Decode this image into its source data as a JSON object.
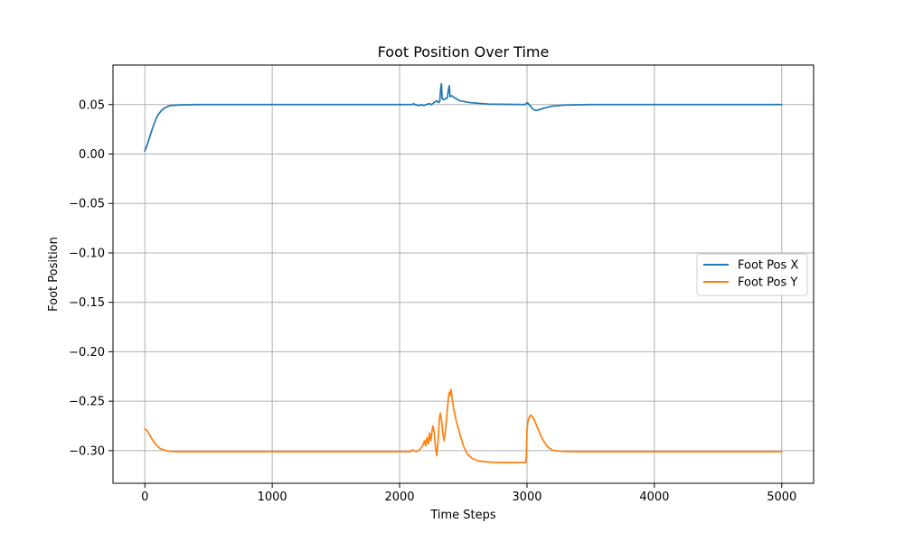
{
  "chart_data": {
    "type": "line",
    "title": "Foot Position Over Time",
    "xlabel": "Time Steps",
    "ylabel": "Foot Position",
    "xlim": [
      -250,
      5250
    ],
    "ylim": [
      -0.333,
      0.09
    ],
    "xticks": [
      0,
      1000,
      2000,
      3000,
      4000,
      5000
    ],
    "yticks": [
      0.05,
      0.0,
      -0.05,
      -0.1,
      -0.15,
      -0.2,
      -0.25,
      -0.3
    ],
    "xtick_labels": [
      "0",
      "1000",
      "2000",
      "3000",
      "4000",
      "5000"
    ],
    "ytick_labels": [
      "0.05",
      "0.00",
      "−0.05",
      "−0.10",
      "−0.15",
      "−0.20",
      "−0.25",
      "−0.30"
    ],
    "grid": true,
    "legend_position": "center-right",
    "series": [
      {
        "name": "Foot Pos X",
        "color": "#1f77b4",
        "points": [
          [
            0,
            0.003
          ],
          [
            20,
            0.01
          ],
          [
            40,
            0.018
          ],
          [
            60,
            0.026
          ],
          [
            80,
            0.033
          ],
          [
            100,
            0.039
          ],
          [
            130,
            0.044
          ],
          [
            160,
            0.047
          ],
          [
            200,
            0.049
          ],
          [
            260,
            0.0496
          ],
          [
            400,
            0.05
          ],
          [
            1000,
            0.05
          ],
          [
            2000,
            0.05
          ],
          [
            2100,
            0.05
          ],
          [
            2110,
            0.051
          ],
          [
            2120,
            0.05
          ],
          [
            2150,
            0.049
          ],
          [
            2170,
            0.05
          ],
          [
            2190,
            0.049
          ],
          [
            2210,
            0.05
          ],
          [
            2230,
            0.051
          ],
          [
            2250,
            0.05
          ],
          [
            2270,
            0.052
          ],
          [
            2290,
            0.054
          ],
          [
            2305,
            0.052
          ],
          [
            2315,
            0.053
          ],
          [
            2322,
            0.066
          ],
          [
            2328,
            0.071
          ],
          [
            2334,
            0.056
          ],
          [
            2345,
            0.055
          ],
          [
            2360,
            0.056
          ],
          [
            2375,
            0.057
          ],
          [
            2383,
            0.065
          ],
          [
            2390,
            0.069
          ],
          [
            2396,
            0.058
          ],
          [
            2410,
            0.059
          ],
          [
            2430,
            0.057
          ],
          [
            2470,
            0.054
          ],
          [
            2550,
            0.052
          ],
          [
            2700,
            0.0505
          ],
          [
            2980,
            0.05
          ],
          [
            2990,
            0.0505
          ],
          [
            3000,
            0.052
          ],
          [
            3010,
            0.051
          ],
          [
            3030,
            0.048
          ],
          [
            3050,
            0.045
          ],
          [
            3070,
            0.044
          ],
          [
            3100,
            0.045
          ],
          [
            3150,
            0.047
          ],
          [
            3200,
            0.0485
          ],
          [
            3300,
            0.0495
          ],
          [
            3500,
            0.05
          ],
          [
            5000,
            0.05
          ]
        ]
      },
      {
        "name": "Foot Pos Y",
        "color": "#ff7f0e",
        "points": [
          [
            0,
            -0.278
          ],
          [
            20,
            -0.28
          ],
          [
            50,
            -0.287
          ],
          [
            80,
            -0.293
          ],
          [
            120,
            -0.298
          ],
          [
            180,
            -0.3005
          ],
          [
            250,
            -0.301
          ],
          [
            400,
            -0.301
          ],
          [
            1000,
            -0.301
          ],
          [
            2000,
            -0.301
          ],
          [
            2090,
            -0.301
          ],
          [
            2100,
            -0.299
          ],
          [
            2110,
            -0.3
          ],
          [
            2130,
            -0.301
          ],
          [
            2150,
            -0.3
          ],
          [
            2170,
            -0.297
          ],
          [
            2185,
            -0.294
          ],
          [
            2195,
            -0.29
          ],
          [
            2205,
            -0.295
          ],
          [
            2215,
            -0.287
          ],
          [
            2225,
            -0.293
          ],
          [
            2235,
            -0.282
          ],
          [
            2245,
            -0.29
          ],
          [
            2255,
            -0.279
          ],
          [
            2262,
            -0.275
          ],
          [
            2270,
            -0.28
          ],
          [
            2280,
            -0.295
          ],
          [
            2292,
            -0.305
          ],
          [
            2302,
            -0.29
          ],
          [
            2312,
            -0.268
          ],
          [
            2320,
            -0.262
          ],
          [
            2330,
            -0.27
          ],
          [
            2340,
            -0.283
          ],
          [
            2350,
            -0.29
          ],
          [
            2360,
            -0.28
          ],
          [
            2372,
            -0.262
          ],
          [
            2382,
            -0.248
          ],
          [
            2390,
            -0.241
          ],
          [
            2396,
            -0.244
          ],
          [
            2404,
            -0.238
          ],
          [
            2412,
            -0.247
          ],
          [
            2425,
            -0.258
          ],
          [
            2445,
            -0.27
          ],
          [
            2470,
            -0.282
          ],
          [
            2500,
            -0.295
          ],
          [
            2530,
            -0.303
          ],
          [
            2570,
            -0.308
          ],
          [
            2620,
            -0.3105
          ],
          [
            2700,
            -0.3115
          ],
          [
            2800,
            -0.312
          ],
          [
            2990,
            -0.312
          ],
          [
            2995,
            -0.305
          ],
          [
            3000,
            -0.28
          ],
          [
            3005,
            -0.272
          ],
          [
            3015,
            -0.267
          ],
          [
            3030,
            -0.264
          ],
          [
            3050,
            -0.267
          ],
          [
            3080,
            -0.276
          ],
          [
            3120,
            -0.288
          ],
          [
            3160,
            -0.296
          ],
          [
            3200,
            -0.2995
          ],
          [
            3250,
            -0.3005
          ],
          [
            3350,
            -0.301
          ],
          [
            5000,
            -0.301
          ]
        ]
      }
    ]
  }
}
